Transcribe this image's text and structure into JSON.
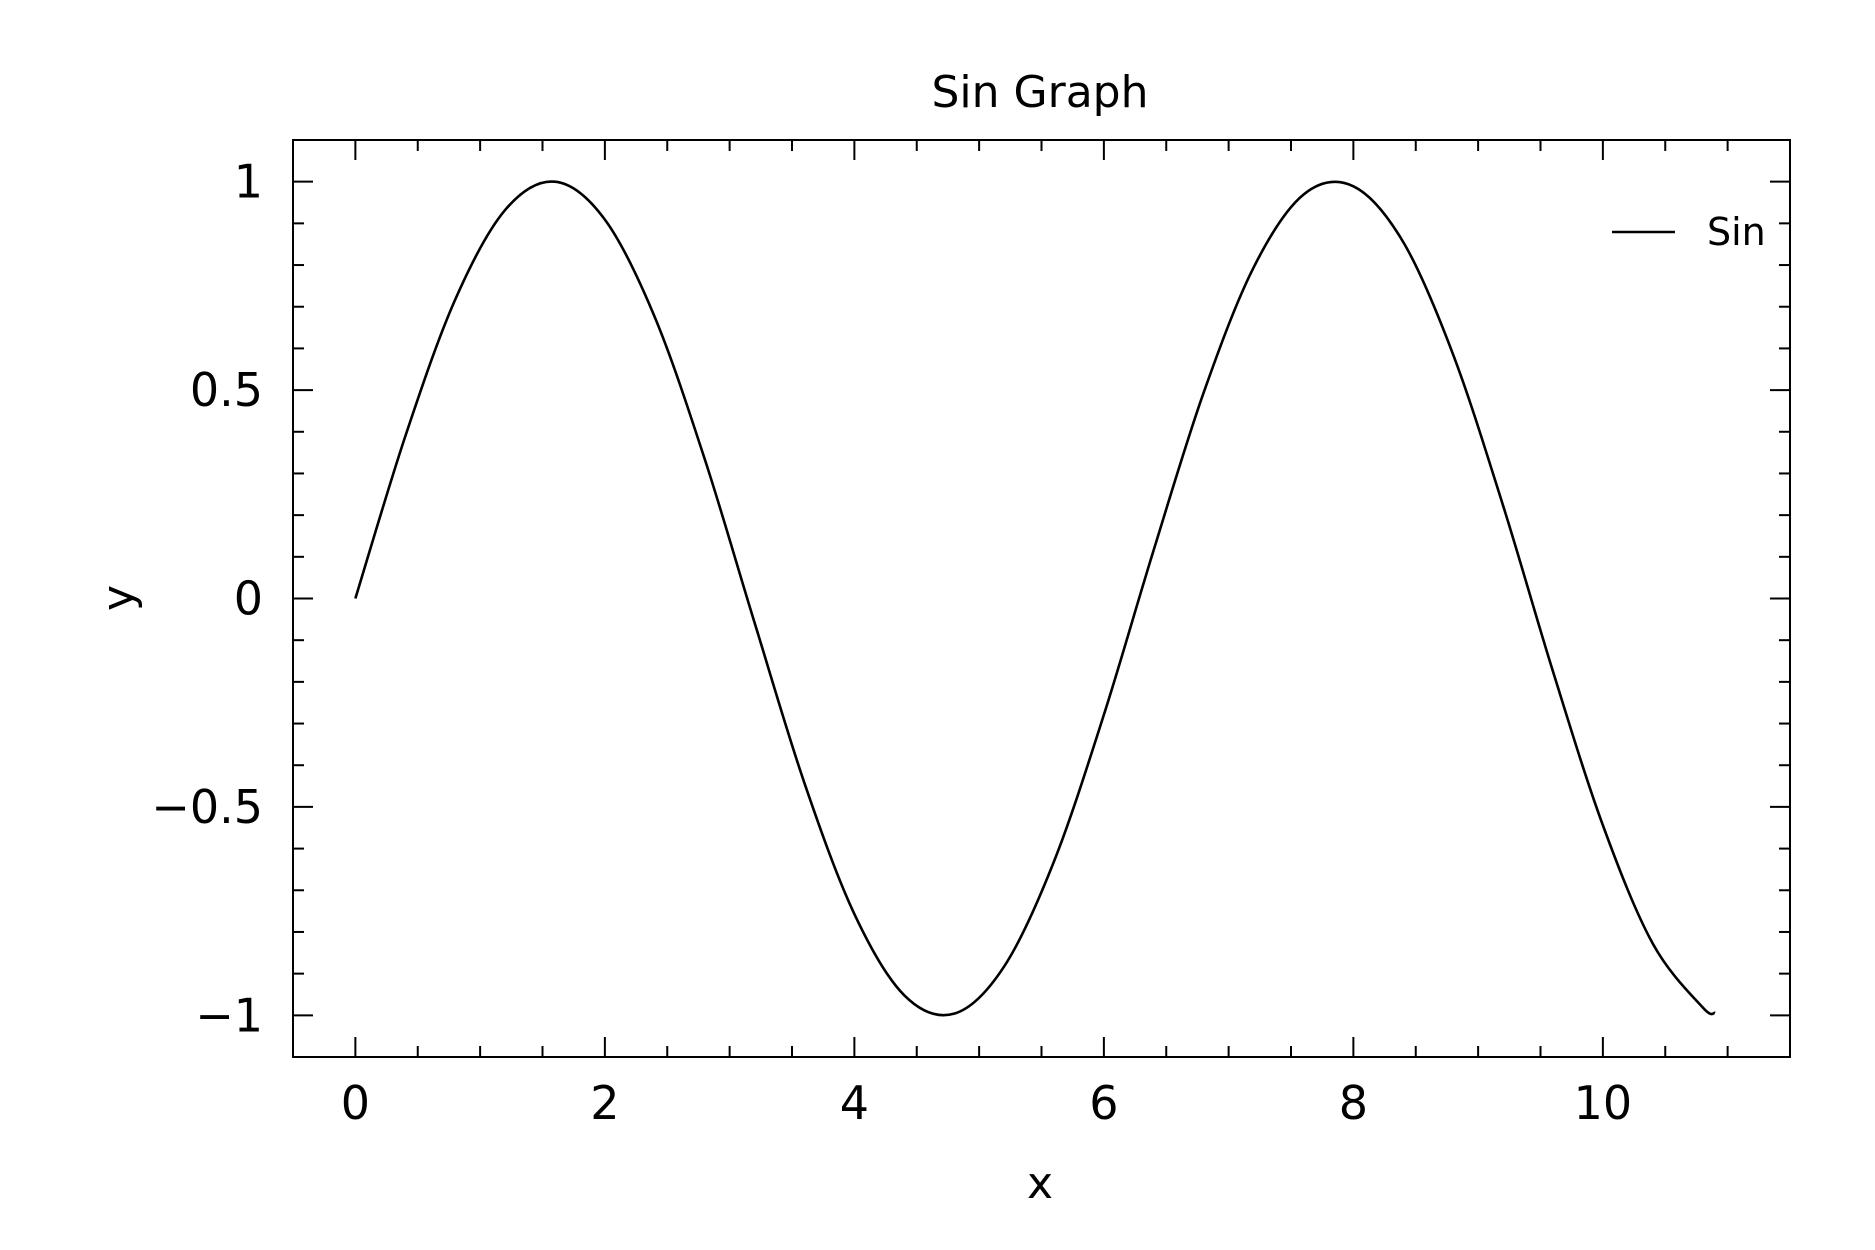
{
  "chart_data": {
    "type": "line",
    "title": "Sin Graph",
    "xlabel": "x",
    "ylabel": "y",
    "xlim": [
      -0.5,
      11.5
    ],
    "ylim": [
      -1.1,
      1.1
    ],
    "xticks": [
      0,
      2,
      4,
      6,
      8,
      10
    ],
    "xtick_labels": [
      "0",
      "2",
      "4",
      "6",
      "8",
      "10"
    ],
    "xminor_step": 0.5,
    "yticks": [
      1,
      0.5,
      0,
      -0.5,
      -1
    ],
    "ytick_labels": [
      "1",
      "0.5",
      "0",
      "−0.5",
      "−1"
    ],
    "yminor_step": 0.1,
    "grid": false,
    "legend_position": "top-right",
    "series": [
      {
        "name": "Sin",
        "color": "#000000",
        "x": [
          0.0,
          0.4,
          0.8,
          1.2,
          1.6,
          2.0,
          2.4,
          2.8,
          3.2,
          3.6,
          4.0,
          4.4,
          4.8,
          5.2,
          5.6,
          6.0,
          6.4,
          6.8,
          7.2,
          7.6,
          8.0,
          8.4,
          8.8,
          9.2,
          9.6,
          10.0,
          10.4,
          10.8,
          10.9
        ],
        "y": [
          0.0,
          0.389,
          0.717,
          0.932,
          1.0,
          0.909,
          0.675,
          0.335,
          -0.058,
          -0.443,
          -0.757,
          -0.952,
          -0.996,
          -0.883,
          -0.631,
          -0.279,
          0.117,
          0.494,
          0.794,
          0.969,
          0.989,
          0.855,
          0.585,
          0.223,
          -0.175,
          -0.544,
          -0.828,
          -0.981,
          -0.994
        ]
      }
    ]
  }
}
